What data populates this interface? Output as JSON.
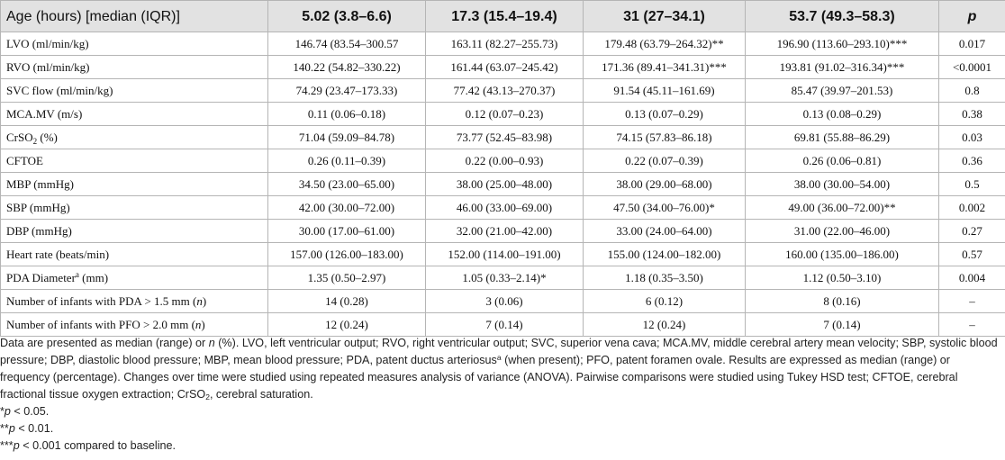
{
  "table": {
    "headers": {
      "first": "Age (hours) [median (IQR)]",
      "cols": [
        "5.02 (3.8–6.6)",
        "17.3 (15.4–19.4)",
        "31 (27–34.1)",
        "53.7 (49.3–58.3)"
      ],
      "p": "p"
    },
    "rows": [
      {
        "label": "LVO (ml/min/kg)",
        "cells": [
          "146.74 (83.54–300.57",
          "163.11 (82.27–255.73)",
          "179.48 (63.79–264.32)**",
          "196.90 (113.60–293.10)***"
        ],
        "p": "0.017"
      },
      {
        "label": "RVO (ml/min/kg)",
        "cells": [
          "140.22 (54.82–330.22)",
          "161.44 (63.07–245.42)",
          "171.36 (89.41–341.31)***",
          "193.81 (91.02–316.34)***"
        ],
        "p": "<0.0001"
      },
      {
        "label": "SVC flow (ml/min/kg)",
        "cells": [
          "74.29 (23.47–173.33)",
          "77.42 (43.13–270.37)",
          "91.54 (45.11–161.69)",
          "85.47 (39.97–201.53)"
        ],
        "p": "0.8"
      },
      {
        "label": "MCA.MV (m/s)",
        "cells": [
          "0.11 (0.06–0.18)",
          "0.12 (0.07–0.23)",
          "0.13 (0.07–0.29)",
          "0.13 (0.08–0.29)"
        ],
        "p": "0.38"
      },
      {
        "label_pre": "CrSO",
        "label_sub": "2",
        "label_post": " (%)",
        "cells": [
          "71.04 (59.09–84.78)",
          "73.77 (52.45–83.98)",
          "74.15 (57.83–86.18)",
          "69.81 (55.88–86.29)"
        ],
        "p": "0.03"
      },
      {
        "label": "CFTOE",
        "cells": [
          "0.26 (0.11–0.39)",
          "0.22 (0.00–0.93)",
          "0.22 (0.07–0.39)",
          "0.26 (0.06–0.81)"
        ],
        "p": "0.36"
      },
      {
        "label": "MBP (mmHg)",
        "cells": [
          "34.50 (23.00–65.00)",
          "38.00 (25.00–48.00)",
          "38.00 (29.00–68.00)",
          "38.00 (30.00–54.00)"
        ],
        "p": "0.5"
      },
      {
        "label": "SBP (mmHg)",
        "cells": [
          "42.00 (30.00–72.00)",
          "46.00 (33.00–69.00)",
          "47.50 (34.00–76.00)*",
          "49.00 (36.00–72.00)**"
        ],
        "p": "0.002"
      },
      {
        "label": "DBP (mmHg)",
        "cells": [
          "30.00 (17.00–61.00)",
          "32.00 (21.00–42.00)",
          "33.00 (24.00–64.00)",
          "31.00 (22.00–46.00)"
        ],
        "p": "0.27"
      },
      {
        "label": "Heart rate (beats/min)",
        "cells": [
          "157.00 (126.00–183.00)",
          "152.00 (114.00–191.00)",
          "155.00 (124.00–182.00)",
          "160.00 (135.00–186.00)"
        ],
        "p": "0.57"
      },
      {
        "label_pre": "PDA Diameter",
        "label_sup": "a",
        "label_post": " (mm)",
        "cells": [
          "1.35 (0.50–2.97)",
          "1.05 (0.33–2.14)*",
          "1.18 (0.35–3.50)",
          "1.12 (0.50–3.10)"
        ],
        "p": "0.004"
      },
      {
        "label_pre": "Number of infants with PDA > 1.5 mm (",
        "label_italic": "n",
        "label_post": ")",
        "cells": [
          "14 (0.28)",
          "3 (0.06)",
          "6 (0.12)",
          "8 (0.16)"
        ],
        "p": "–"
      },
      {
        "label_pre": "Number of infants with PFO > 2.0 mm (",
        "label_italic": "n",
        "label_post": ")",
        "cells": [
          "12 (0.24)",
          "7 (0.14)",
          "12 (0.24)",
          "7 (0.14)"
        ],
        "p": "–"
      }
    ]
  },
  "notes": {
    "main_1": "Data are presented as median (range) or ",
    "main_n": "n",
    "main_2": " (%). LVO, left ventricular output; RVO, right ventricular output; SVC, superior vena cava; MCA.MV, middle cerebral artery mean velocity; SBP, systolic blood pressure; DBP, diastolic blood pressure; MBP, mean blood pressure; PDA, patent ductus arteriosus",
    "main_sup": "a",
    "main_3": " (when present); PFO, patent foramen ovale. Results are expressed as median (range) or frequency (percentage). Changes over time were studied using repeated measures analysis of variance (ANOVA). Pairwise comparisons were studied using Tukey HSD test; CFTOE, cerebral fractional tissue oxygen extraction; CrSO",
    "main_sub": "2",
    "main_4": ", cerebral saturation.",
    "sig1_stars": "*",
    "sig1_p": "p",
    "sig1_rest": " < 0.05.",
    "sig2_stars": "**",
    "sig2_p": "p",
    "sig2_rest": " < 0.01.",
    "sig3_stars": "***",
    "sig3_p": "p",
    "sig3_rest": " < 0.001 compared to baseline."
  }
}
